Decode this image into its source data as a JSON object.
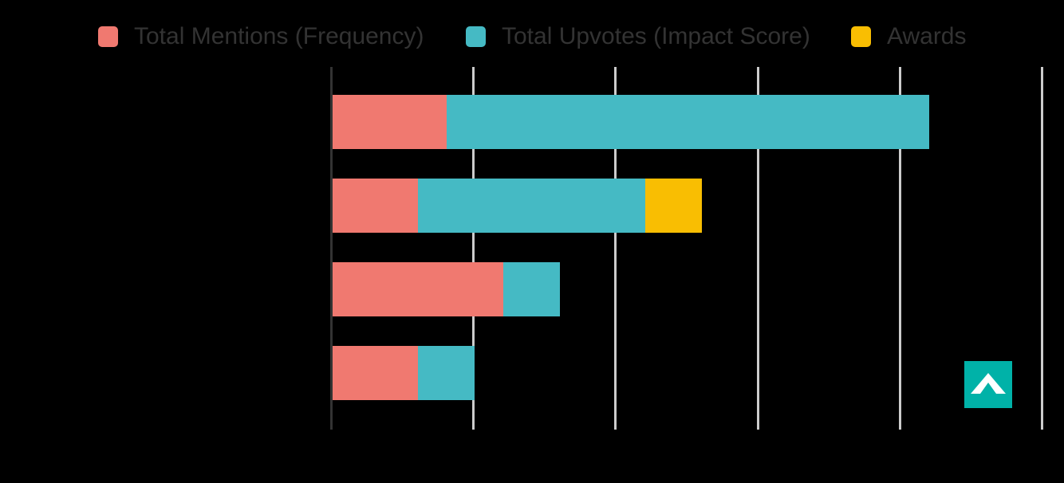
{
  "page": {
    "background": "#000000"
  },
  "legend": {
    "text_color": "#333333",
    "items": [
      {
        "label": "Total Mentions (Frequency)",
        "color": "#F07970"
      },
      {
        "label": "Total Upvotes (Impact Score)",
        "color": "#45BAC4"
      },
      {
        "label": "Awards",
        "color": "#F9BE02"
      }
    ]
  },
  "chart_data": {
    "type": "bar",
    "orientation": "horizontal",
    "stacked": true,
    "title": "",
    "xlabel": "",
    "ylabel": "",
    "categories": [
      "",
      "",
      "",
      ""
    ],
    "series": [
      {
        "name": "Total Mentions (Frequency)",
        "color": "#F07970",
        "values": [
          40,
          30,
          60,
          30
        ]
      },
      {
        "name": "Total Upvotes (Impact Score)",
        "color": "#45BAC4",
        "values": [
          170,
          80,
          20,
          20
        ]
      },
      {
        "name": "Awards",
        "color": "#F9BE02",
        "values": [
          0,
          20,
          0,
          0
        ]
      }
    ],
    "stacked_totals": [
      210,
      130,
      80,
      50
    ],
    "xlim": [
      0,
      258
    ],
    "x_gridline_values": [
      0,
      50,
      100,
      150,
      200,
      250
    ],
    "grid": true,
    "legend_position": "top",
    "note": "category labels and axis tick labels are not visible in the screenshot (dark text over dark background); values estimated from gridline spacing"
  },
  "axes": {
    "axis_line_color": "#333333",
    "grid_line_color": "#cccccc"
  },
  "logo": {
    "name": "chevron-logo",
    "background": "#00B2A8",
    "chevron_color": "#FFFFFF"
  }
}
